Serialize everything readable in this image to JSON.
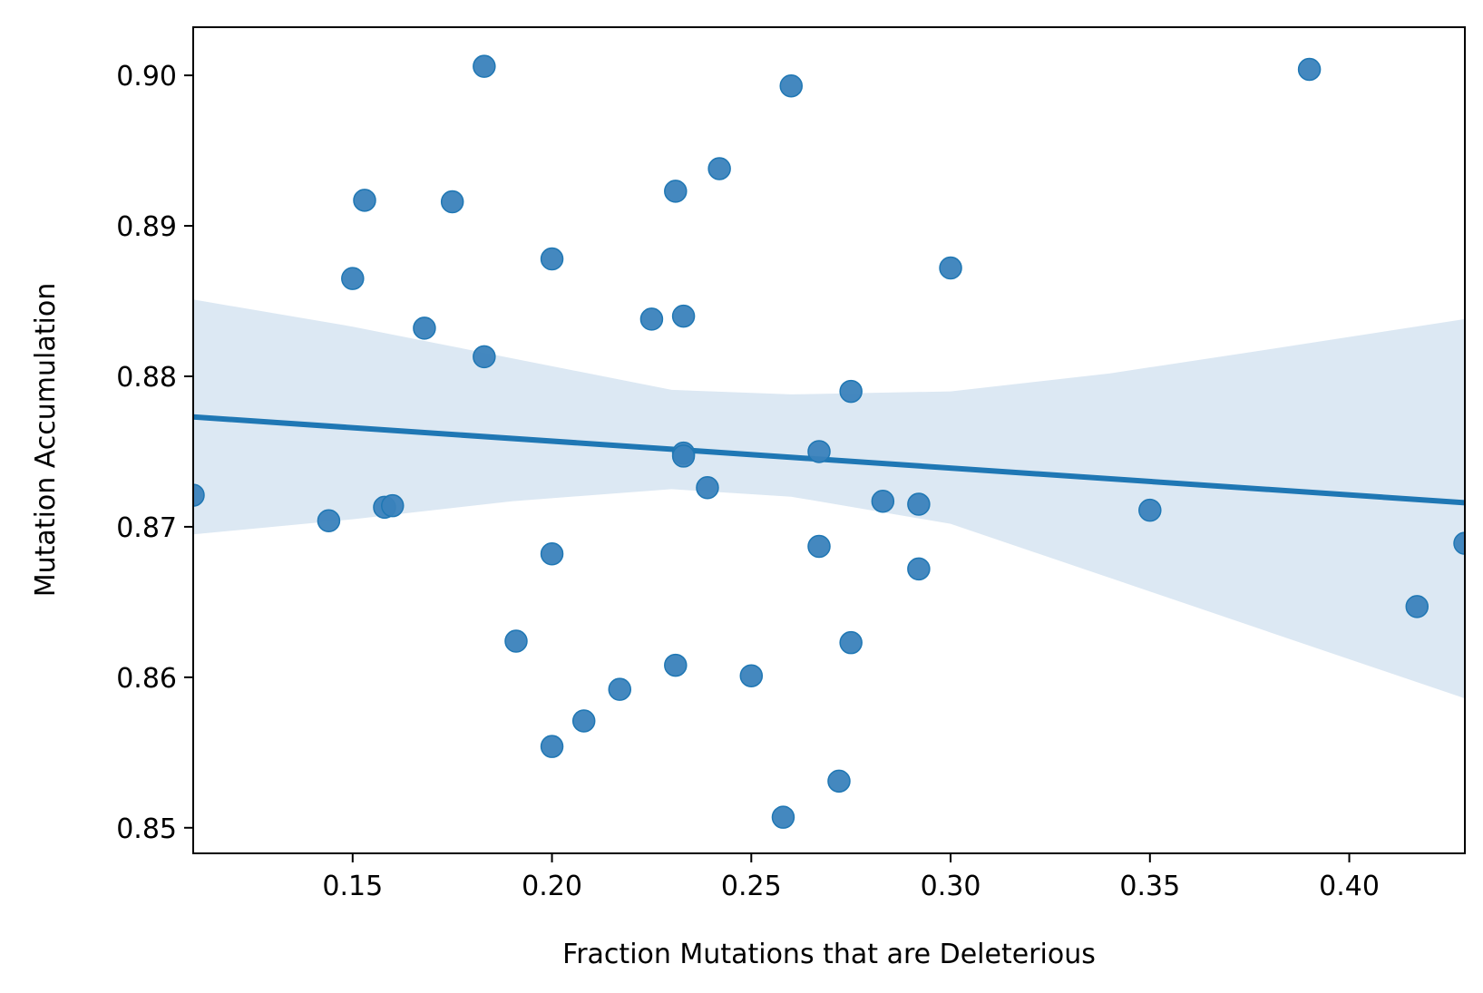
{
  "chart_data": {
    "type": "scatter",
    "title": "",
    "xlabel": "Fraction Mutations that are Deleterious",
    "ylabel": "Mutation Accumulation",
    "xlim": [
      0.11,
      0.429
    ],
    "ylim": [
      0.8483,
      0.9032
    ],
    "x_ticks": [
      0.15,
      0.2,
      0.25,
      0.3,
      0.35,
      0.4
    ],
    "x_tick_labels": [
      "0.15",
      "0.20",
      "0.25",
      "0.30",
      "0.35",
      "0.40"
    ],
    "y_ticks": [
      0.85,
      0.86,
      0.87,
      0.88,
      0.89,
      0.9
    ],
    "y_tick_labels": [
      "0.85",
      "0.86",
      "0.87",
      "0.88",
      "0.89",
      "0.90"
    ],
    "grid": false,
    "colors": {
      "points": "#3a82bc",
      "regression_line": "#1f77b4",
      "confidence_band": "#dce8f3"
    },
    "points": [
      {
        "x": 0.11,
        "y": 0.8721
      },
      {
        "x": 0.144,
        "y": 0.8704
      },
      {
        "x": 0.15,
        "y": 0.8865
      },
      {
        "x": 0.153,
        "y": 0.8917
      },
      {
        "x": 0.158,
        "y": 0.8713
      },
      {
        "x": 0.16,
        "y": 0.8714
      },
      {
        "x": 0.168,
        "y": 0.8832
      },
      {
        "x": 0.175,
        "y": 0.8916
      },
      {
        "x": 0.183,
        "y": 0.9006
      },
      {
        "x": 0.183,
        "y": 0.8813
      },
      {
        "x": 0.191,
        "y": 0.8624
      },
      {
        "x": 0.2,
        "y": 0.8878
      },
      {
        "x": 0.2,
        "y": 0.8682
      },
      {
        "x": 0.2,
        "y": 0.8554
      },
      {
        "x": 0.208,
        "y": 0.8571
      },
      {
        "x": 0.217,
        "y": 0.8592
      },
      {
        "x": 0.225,
        "y": 0.8838
      },
      {
        "x": 0.231,
        "y": 0.8923
      },
      {
        "x": 0.231,
        "y": 0.8608
      },
      {
        "x": 0.233,
        "y": 0.884
      },
      {
        "x": 0.233,
        "y": 0.8749
      },
      {
        "x": 0.233,
        "y": 0.8747
      },
      {
        "x": 0.239,
        "y": 0.8726
      },
      {
        "x": 0.242,
        "y": 0.8938
      },
      {
        "x": 0.25,
        "y": 0.8601
      },
      {
        "x": 0.258,
        "y": 0.8507
      },
      {
        "x": 0.26,
        "y": 0.8993
      },
      {
        "x": 0.267,
        "y": 0.875
      },
      {
        "x": 0.267,
        "y": 0.8687
      },
      {
        "x": 0.272,
        "y": 0.8531
      },
      {
        "x": 0.275,
        "y": 0.879
      },
      {
        "x": 0.275,
        "y": 0.8623
      },
      {
        "x": 0.283,
        "y": 0.8717
      },
      {
        "x": 0.292,
        "y": 0.8715
      },
      {
        "x": 0.292,
        "y": 0.8672
      },
      {
        "x": 0.3,
        "y": 0.8872
      },
      {
        "x": 0.35,
        "y": 0.8711
      },
      {
        "x": 0.39,
        "y": 0.9004
      },
      {
        "x": 0.417,
        "y": 0.8647
      },
      {
        "x": 0.429,
        "y": 0.8689
      }
    ],
    "regression_line": [
      {
        "x": 0.11,
        "y": 0.8773
      },
      {
        "x": 0.429,
        "y": 0.8716
      }
    ],
    "confidence_band": [
      {
        "x": 0.11,
        "lower": 0.8695,
        "upper": 0.8851
      },
      {
        "x": 0.15,
        "lower": 0.8705,
        "upper": 0.8833
      },
      {
        "x": 0.19,
        "lower": 0.8717,
        "upper": 0.8812
      },
      {
        "x": 0.23,
        "lower": 0.8725,
        "upper": 0.8791
      },
      {
        "x": 0.26,
        "lower": 0.872,
        "upper": 0.8788
      },
      {
        "x": 0.3,
        "lower": 0.8702,
        "upper": 0.879
      },
      {
        "x": 0.34,
        "lower": 0.8666,
        "upper": 0.8802
      },
      {
        "x": 0.38,
        "lower": 0.863,
        "upper": 0.8818
      },
      {
        "x": 0.429,
        "lower": 0.8586,
        "upper": 0.8838
      }
    ]
  }
}
